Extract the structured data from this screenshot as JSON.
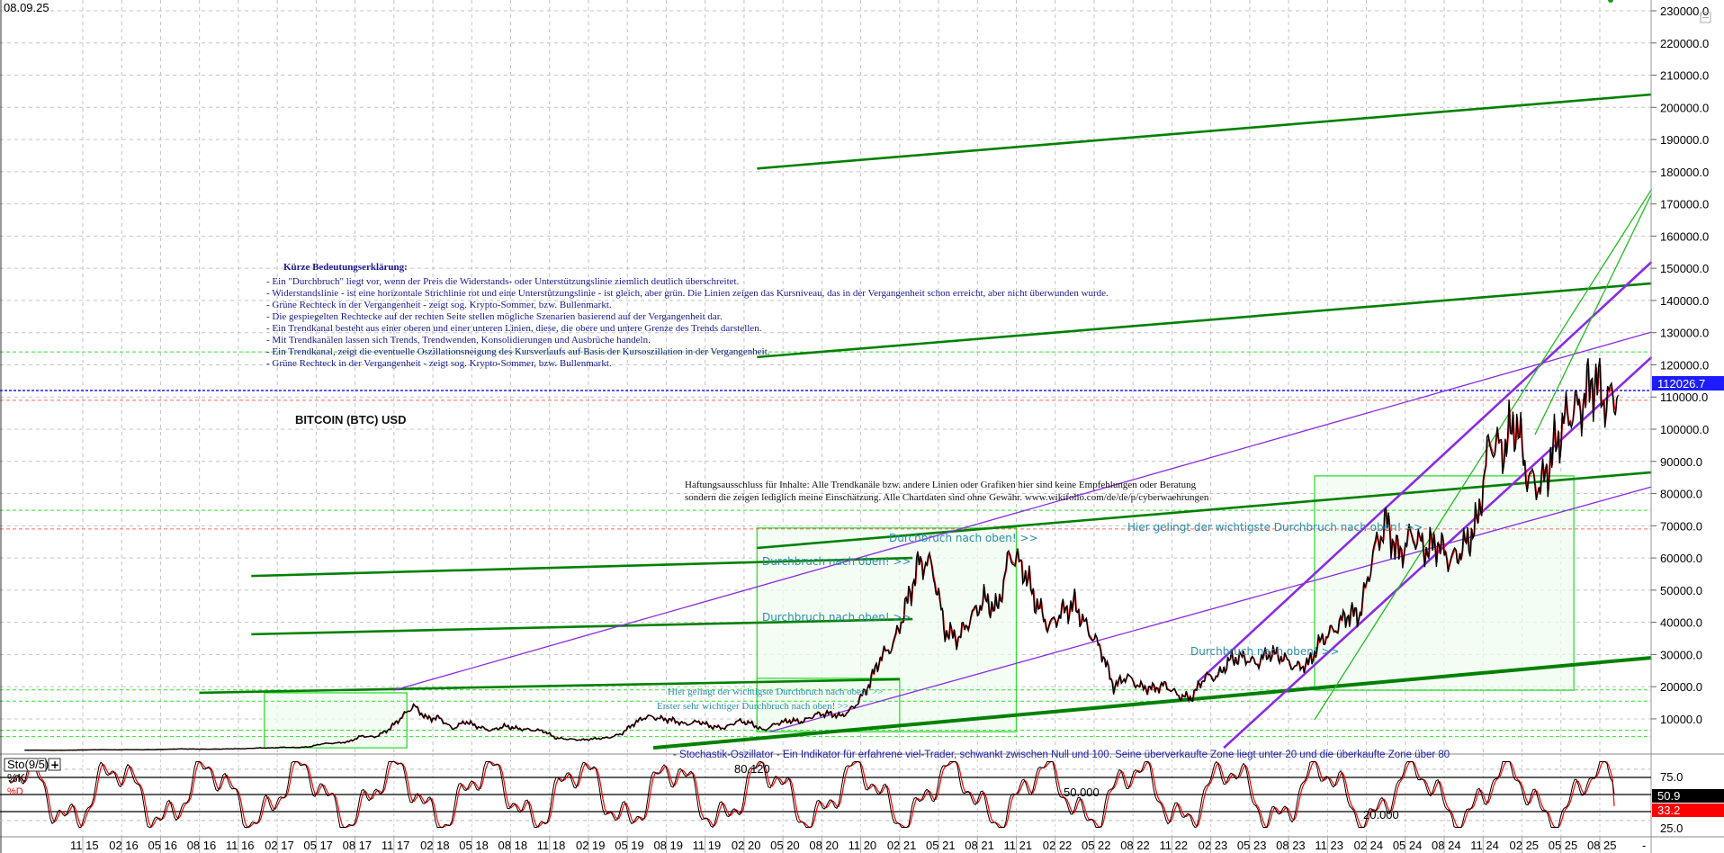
{
  "header": {
    "date": "08.09.25"
  },
  "chart_data": {
    "type": "line",
    "title": "BITCOIN (BTC) USD",
    "y_axis": {
      "min": 0,
      "max": 235000,
      "ticks": [
        "230000.0",
        "220000.0",
        "210000.0",
        "200000.0",
        "190000.0",
        "180000.0",
        "170000.0",
        "160000.0",
        "150000.0",
        "140000.0",
        "130000.0",
        "120000.0",
        "110000.0",
        "100000.0",
        "90000.0",
        "80000.0",
        "70000.0",
        "60000.0",
        "50000.0",
        "40000.0",
        "30000.0",
        "20000.0",
        "10000.0"
      ],
      "scale": "linear",
      "grid": true
    },
    "x_axis": {
      "ticks": [
        "11 15",
        "02 16",
        "05 16",
        "08 16",
        "11 16",
        "02 17",
        "05 17",
        "08 17",
        "11 17",
        "02 18",
        "05 18",
        "08 18",
        "11 18",
        "02 19",
        "05 19",
        "08 19",
        "11 19",
        "02 20",
        "05 20",
        "08 20",
        "11 20",
        "02 21",
        "05 21",
        "08 21",
        "11 21",
        "02 22",
        "05 22",
        "08 22",
        "11 22",
        "02 23",
        "05 23",
        "08 23",
        "11 23",
        "02 24",
        "05 24",
        "08 24",
        "11 24",
        "02 25",
        "05 25",
        "08 25"
      ],
      "end_marker": "-"
    },
    "price_series": {
      "start": "2015-06",
      "values": [
        263,
        284,
        230,
        236,
        314,
        377,
        430,
        369,
        437,
        416,
        448,
        531,
        673,
        624,
        575,
        609,
        700,
        742,
        964,
        970,
        1190,
        1080,
        1350,
        2300,
        2480,
        2875,
        4700,
        4340,
        6470,
        10200,
        14100,
        10200,
        10300,
        6900,
        9200,
        7500,
        6400,
        7730,
        7000,
        6600,
        6300,
        4000,
        3700,
        3450,
        3850,
        4100,
        5300,
        8600,
        10800,
        10100,
        9600,
        8300,
        9200,
        7550,
        7200,
        9350,
        8600,
        6400,
        8600,
        9450,
        9140,
        11350,
        11650,
        10780,
        13800,
        19700,
        29000,
        33100,
        45200,
        58800,
        57700,
        37300,
        35000,
        41500,
        47100,
        43800,
        61300,
        57000,
        46300,
        38500,
        43200,
        45500,
        37700,
        31800,
        19900,
        23300,
        20000,
        19400,
        20500,
        17200,
        16500,
        23100,
        23100,
        28500,
        29200,
        27200,
        30500,
        29200,
        26000,
        27000,
        34500,
        37700,
        42300,
        42600,
        61200,
        71300,
        60700,
        67500,
        62700,
        64600,
        59000,
        63300,
        70200,
        96400,
        93400,
        102400,
        84400,
        82500,
        94200,
        104600,
        107100,
        115800,
        108200,
        112026.7
      ]
    },
    "last_price": "112026.7",
    "colors": {
      "price_up": "#000000",
      "price_down": "#ff0000",
      "support": "#008000",
      "channel": "#8a2be2",
      "zone": "#33dd33",
      "last_price_box": "#1c1cff",
      "annotation": "#2a8fa8"
    },
    "trend_lines": [
      {
        "color": "#008000",
        "kind": "thick",
        "from": [
          "2020-03",
          181000
        ],
        "to": [
          "2025-12",
          204000
        ]
      },
      {
        "color": "#008000",
        "kind": "thick",
        "from": [
          "2020-03",
          122400
        ],
        "to": [
          "2025-12",
          145300
        ]
      },
      {
        "color": "#008000",
        "kind": "thick",
        "from": [
          "2020-03",
          63100
        ],
        "to": [
          "2025-12",
          86600
        ]
      },
      {
        "color": "#008000",
        "kind": "thick",
        "from": [
          "2016-12",
          54400
        ],
        "to": [
          "2021-03",
          60000
        ]
      },
      {
        "color": "#008000",
        "kind": "thick",
        "from": [
          "2016-12",
          36300
        ],
        "to": [
          "2021-03",
          41000
        ]
      },
      {
        "color": "#008000",
        "kind": "thick",
        "from": [
          "2016-08",
          18100
        ],
        "to": [
          "2021-02",
          22300
        ]
      },
      {
        "color": "#008000",
        "kind": "heavy",
        "from": [
          "2019-07",
          1000
        ],
        "to": [
          "2025-12",
          29000
        ]
      },
      {
        "color": "#8a2be2",
        "kind": "thin",
        "from": [
          "2017-11",
          18900
        ],
        "to": [
          "2025-12",
          130200
        ]
      },
      {
        "color": "#8a2be2",
        "kind": "thin",
        "from": [
          "2020-04",
          6000
        ],
        "to": [
          "2025-12",
          82100
        ]
      },
      {
        "color": "#8a2be2",
        "kind": "thick",
        "from": [
          "2023-01",
          21500
        ],
        "to": [
          "2025-12",
          152000
        ]
      },
      {
        "color": "#8a2be2",
        "kind": "thick",
        "from": [
          "2023-03",
          1000
        ],
        "to": [
          "2025-12",
          122400
        ]
      },
      {
        "color": "#22bb22",
        "kind": "thin",
        "from": [
          "2023-10",
          9700
        ],
        "to": [
          "2025-12",
          174600
        ]
      },
      {
        "color": "#22bb22",
        "kind": "thin",
        "from": [
          "2025-03",
          98300
        ],
        "to": [
          "2025-12",
          173200
        ]
      }
    ],
    "zones": [
      {
        "from": "2017-01",
        "to": "2017-12",
        "low": 1000,
        "high": 18100
      },
      {
        "from": "2020-03",
        "to": "2021-11",
        "low": 6000,
        "high": 69300
      },
      {
        "from": "2020-03",
        "to": "2021-02",
        "low": 6000,
        "high": 22600
      },
      {
        "from": "2023-10",
        "to": "2025-06",
        "low": 18900,
        "high": 85500
      }
    ],
    "horizontal_levels": [
      {
        "price": 124000,
        "color": "#33dd33"
      },
      {
        "price": 109000,
        "color": "#ff6666"
      },
      {
        "price": 74800,
        "color": "#33dd33"
      },
      {
        "price": 69000,
        "color": "#ff6666"
      },
      {
        "price": 19000,
        "color": "#33dd33"
      },
      {
        "price": 15500,
        "color": "#33dd33"
      },
      {
        "price": 6500,
        "color": "#33dd33"
      },
      {
        "price": 4500,
        "color": "#33dd33"
      }
    ],
    "annotations": {
      "title": "BITCOIN (BTC) USD",
      "legend_title": "Kürze Bedeutungserklärung:",
      "legend_lines": [
        "- Ein \"Durchbruch\" liegt vor, wenn der Preis die Widerstands- oder Unterstützungslinie ziemlich deutlich überschreitet.",
        "- Widerstandslinie - ist eine horizontale Strichlinie rot und eine Unterstützungslinie - ist gleich, aber grün. Die Linien zeigen das Kursniveau, das in der Vergangenheit schon erreicht, aber nicht überwunden wurde.",
        "- Grüne Rechteck in der Vergangenheit - zeigt sog. Krypto-Sommer, bzw. Bullenmarkt.",
        "- Die gespiegelten Rechtecke auf der rechten Seite stellen mögliche Szenarien basierend auf der Vergangenheit dar.",
        "- Ein Trendkanal besteht aus einer oberen und einer unteren Linien, diese, die obere und untere Grenze des Trends darstellen.",
        "- Mit Trendkanälen lassen sich Trends, Trendwenden, Konsolidierungen und Ausbrüche handeln.",
        "- Ein Trendkanal, zeigt die eventuelle Oszillationsneigung des Kursverlaufs auf Basis der Kursoszillation in der Vergangenheit.",
        "- Grüne Rechteck in der Vergangenheit - zeigt sog. Krypto-Sommer, bzw. Bullenmarkt."
      ],
      "disclaimer_1": "Haftungsausschluss für Inhalte: Alle Trendkanäle bzw. andere Linien oder Grafiken hier sind keine Empfehlungen oder Beratung",
      "disclaimer_2": "sondern die zeigen lediglich meine Einschätzung. Alle Chartdaten sind ohne Gewähr. www.wikifolio.com/de/de/p/cyberwaehrungen",
      "breakout_main": "Hier gelingt der wichtigste Durchbruch nach oben! >>",
      "breakout_1": "Durchbruch nach oben! >>",
      "breakout_2": "Durchbruch nach oben! >>",
      "breakout_3": "Durchbruch nach oben! >>",
      "breakout_4": "Durchbruch nach oben! >>",
      "breakout_2020": "Hier gelingt der wichtigste Durchbruch nach oben! >>",
      "breakout_first": "Erster sehr wichtiger Durchbruch nach oben! >>",
      "stoch_note": "- Stochastik-Oszillator - Ein Indikator für erfahrene viel-Trader, schwankt zwischen Null und 100. Seine überverkaufte Zone liegt unter 20 und die überkaufte Zone über 80",
      "level_80": "80.120",
      "level_50": "50.000",
      "level_20": "20.000"
    },
    "indicator": {
      "name": "Sto(9/5)",
      "k_label": "%K",
      "d_label": "%D",
      "k_value": "50.9",
      "d_value": "33.2",
      "levels": [
        "75.0",
        "25.0"
      ],
      "k_color": "#000000",
      "d_color": "#ff0000",
      "range": [
        0,
        100
      ]
    }
  }
}
